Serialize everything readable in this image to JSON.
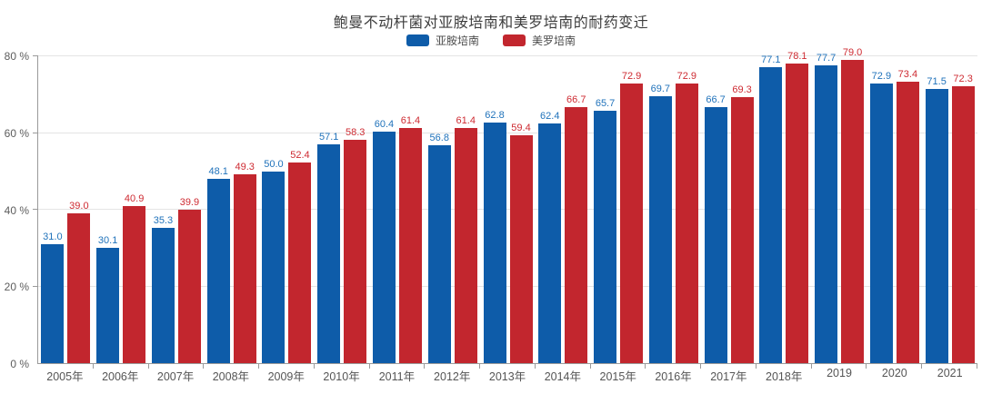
{
  "title": "鲍曼不动杆菌对亚胺培南和美罗培南的耐药变迁",
  "legend": {
    "items": [
      "亚胺培南",
      "美罗培南"
    ]
  },
  "colors": {
    "imipenem_blue": "#0e5ca9",
    "meropenem_red": "#c2262e",
    "imipenem_label": "#2173bb",
    "meropenem_label": "#ce2b32",
    "gridline": "#e4e4e4",
    "axis": "#9a9a9a"
  },
  "chart_data": {
    "type": "bar",
    "title": "鲍曼不动杆菌对亚胺培南和美罗培南的耐药变迁",
    "categories": [
      "2005年",
      "2006年",
      "2007年",
      "2008年",
      "2009年",
      "2010年",
      "2011年",
      "2012年",
      "2013年",
      "2014年",
      "2015年",
      "2016年",
      "2017年",
      "2018年",
      "2019",
      "2020",
      "2021"
    ],
    "series": [
      {
        "name": "亚胺培南",
        "color": "#0e5ca9",
        "label_color": "#2173bb",
        "values": [
          31.0,
          30.1,
          35.3,
          48.1,
          50.0,
          57.1,
          60.4,
          56.8,
          62.8,
          62.4,
          65.7,
          69.7,
          66.7,
          77.1,
          77.7,
          72.9,
          71.5
        ]
      },
      {
        "name": "美罗培南",
        "color": "#c2262e",
        "label_color": "#ce2b32",
        "values": [
          39.0,
          40.9,
          39.9,
          49.3,
          52.4,
          58.3,
          61.4,
          61.4,
          59.4,
          66.7,
          72.9,
          72.9,
          69.3,
          78.1,
          79.0,
          73.4,
          72.3
        ]
      }
    ],
    "xlabel": "",
    "ylabel": "",
    "ylim": [
      0,
      80
    ],
    "y_ticks": [
      {
        "value": 0,
        "label": "0 %"
      },
      {
        "value": 20,
        "label": "20 %"
      },
      {
        "value": 40,
        "label": "40 %"
      },
      {
        "value": 60,
        "label": "60 %"
      },
      {
        "value": 80,
        "label": "80 %"
      }
    ],
    "grid": true,
    "legend_position": "top",
    "value_labels": true,
    "value_label_decimals": 1
  }
}
